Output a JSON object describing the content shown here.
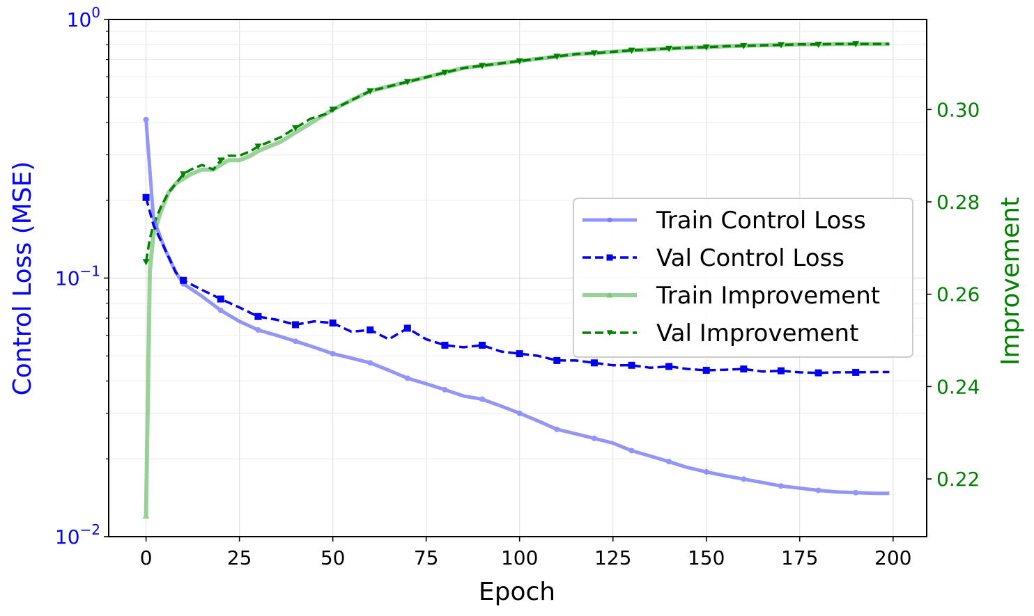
{
  "chart_data": {
    "type": "line",
    "xlabel": "Epoch",
    "ylabel_left": "Control Loss (MSE)",
    "ylabel_right": "Improvement",
    "xlim": [
      -10,
      209
    ],
    "ylim_left": [
      0.01,
      1.0
    ],
    "ylim_right": [
      0.2075,
      0.3195
    ],
    "left_scale": "log",
    "grid": true,
    "legend_position": "center-right",
    "x_ticks": [
      0,
      25,
      50,
      75,
      100,
      125,
      150,
      175,
      200
    ],
    "left_ticks": [
      {
        "value": 0.01,
        "base": "10",
        "exp": "−2"
      },
      {
        "value": 0.1,
        "base": "10",
        "exp": "−1"
      },
      {
        "value": 1.0,
        "base": "10",
        "exp": "0"
      }
    ],
    "right_ticks": [
      "0.22",
      "0.24",
      "0.26",
      "0.28",
      "0.30"
    ],
    "colors": {
      "left_axis": "#0000ff",
      "right_axis": "#008000",
      "train_loss": "#6f74f5",
      "val_loss": "#0000ee",
      "train_imp": "#6fbf6f",
      "val_imp": "#008000"
    },
    "series": [
      {
        "name": "Train Control Loss",
        "axis": "left",
        "x": [
          0,
          2,
          5,
          8,
          10,
          15,
          20,
          25,
          30,
          35,
          40,
          45,
          50,
          55,
          60,
          65,
          70,
          75,
          80,
          85,
          90,
          95,
          100,
          105,
          110,
          115,
          120,
          125,
          130,
          135,
          140,
          145,
          150,
          155,
          160,
          165,
          170,
          175,
          180,
          185,
          190,
          195,
          199
        ],
        "y": [
          0.41,
          0.17,
          0.13,
          0.105,
          0.095,
          0.085,
          0.075,
          0.068,
          0.063,
          0.06,
          0.057,
          0.054,
          0.051,
          0.049,
          0.047,
          0.044,
          0.041,
          0.039,
          0.037,
          0.035,
          0.034,
          0.032,
          0.03,
          0.028,
          0.026,
          0.025,
          0.024,
          0.023,
          0.0215,
          0.0205,
          0.0195,
          0.0185,
          0.0178,
          0.0172,
          0.0167,
          0.0162,
          0.0157,
          0.0154,
          0.0151,
          0.0149,
          0.0148,
          0.0147,
          0.0147
        ],
        "marker_x": [
          0,
          10,
          20,
          30,
          40,
          50,
          60,
          70,
          80,
          90,
          100,
          110,
          120,
          130,
          140,
          150,
          160,
          170,
          180,
          190
        ]
      },
      {
        "name": "Val Control Loss",
        "axis": "left",
        "x": [
          0,
          2,
          5,
          8,
          10,
          15,
          20,
          25,
          30,
          35,
          40,
          45,
          50,
          55,
          60,
          65,
          70,
          75,
          80,
          85,
          90,
          95,
          100,
          105,
          110,
          115,
          120,
          125,
          130,
          135,
          140,
          145,
          150,
          155,
          160,
          165,
          170,
          175,
          180,
          185,
          190,
          195,
          199
        ],
        "y": [
          0.205,
          0.16,
          0.13,
          0.105,
          0.098,
          0.09,
          0.083,
          0.077,
          0.071,
          0.069,
          0.066,
          0.068,
          0.067,
          0.062,
          0.063,
          0.058,
          0.064,
          0.058,
          0.055,
          0.054,
          0.055,
          0.052,
          0.051,
          0.05,
          0.048,
          0.048,
          0.047,
          0.046,
          0.046,
          0.045,
          0.0455,
          0.0445,
          0.044,
          0.0442,
          0.0445,
          0.0435,
          0.0438,
          0.0432,
          0.043,
          0.0432,
          0.0432,
          0.0433,
          0.0433
        ],
        "marker_x": [
          0,
          10,
          20,
          30,
          40,
          50,
          60,
          70,
          80,
          90,
          100,
          110,
          120,
          130,
          140,
          150,
          160,
          170,
          180,
          190
        ]
      },
      {
        "name": "Train Improvement",
        "axis": "right",
        "x": [
          0,
          1,
          2,
          4,
          6,
          8,
          10,
          12,
          15,
          18,
          20,
          22,
          25,
          28,
          30,
          33,
          36,
          40,
          44,
          48,
          50,
          55,
          60,
          65,
          70,
          75,
          80,
          85,
          90,
          95,
          100,
          105,
          110,
          115,
          120,
          125,
          130,
          135,
          140,
          145,
          150,
          155,
          160,
          165,
          170,
          175,
          180,
          185,
          190,
          195,
          199
        ],
        "y": [
          0.212,
          0.265,
          0.273,
          0.278,
          0.282,
          0.284,
          0.285,
          0.286,
          0.287,
          0.287,
          0.288,
          0.289,
          0.289,
          0.29,
          0.291,
          0.292,
          0.293,
          0.295,
          0.297,
          0.299,
          0.3,
          0.302,
          0.304,
          0.305,
          0.306,
          0.307,
          0.308,
          0.309,
          0.3095,
          0.31,
          0.3105,
          0.311,
          0.3115,
          0.312,
          0.3122,
          0.3125,
          0.3128,
          0.313,
          0.3132,
          0.3134,
          0.3135,
          0.3137,
          0.3138,
          0.3139,
          0.314,
          0.3141,
          0.3141,
          0.3142,
          0.3142,
          0.3142,
          0.3142
        ],
        "marker_x": [
          0
        ]
      },
      {
        "name": "Val Improvement",
        "axis": "right",
        "x": [
          0,
          1,
          2,
          4,
          6,
          8,
          10,
          12,
          15,
          18,
          20,
          22,
          25,
          28,
          30,
          33,
          36,
          40,
          44,
          48,
          50,
          55,
          60,
          65,
          70,
          75,
          80,
          85,
          90,
          95,
          100,
          105,
          110,
          115,
          120,
          125,
          130,
          135,
          140,
          145,
          150,
          155,
          160,
          165,
          170,
          175,
          180,
          185,
          190,
          195,
          199
        ],
        "y": [
          0.267,
          0.272,
          0.275,
          0.279,
          0.282,
          0.284,
          0.286,
          0.287,
          0.288,
          0.287,
          0.289,
          0.29,
          0.29,
          0.291,
          0.292,
          0.293,
          0.294,
          0.296,
          0.298,
          0.299,
          0.3,
          0.302,
          0.304,
          0.305,
          0.306,
          0.307,
          0.308,
          0.309,
          0.3095,
          0.31,
          0.3105,
          0.311,
          0.3115,
          0.312,
          0.3122,
          0.3125,
          0.3128,
          0.313,
          0.3132,
          0.3134,
          0.3135,
          0.3137,
          0.3138,
          0.3139,
          0.314,
          0.3141,
          0.3141,
          0.3142,
          0.3142,
          0.3142,
          0.3142
        ],
        "marker_x": [
          0,
          10,
          20,
          30,
          40,
          50,
          60,
          70,
          80,
          90,
          100,
          110,
          120,
          130,
          140,
          150,
          160,
          170,
          180,
          190
        ]
      }
    ]
  }
}
